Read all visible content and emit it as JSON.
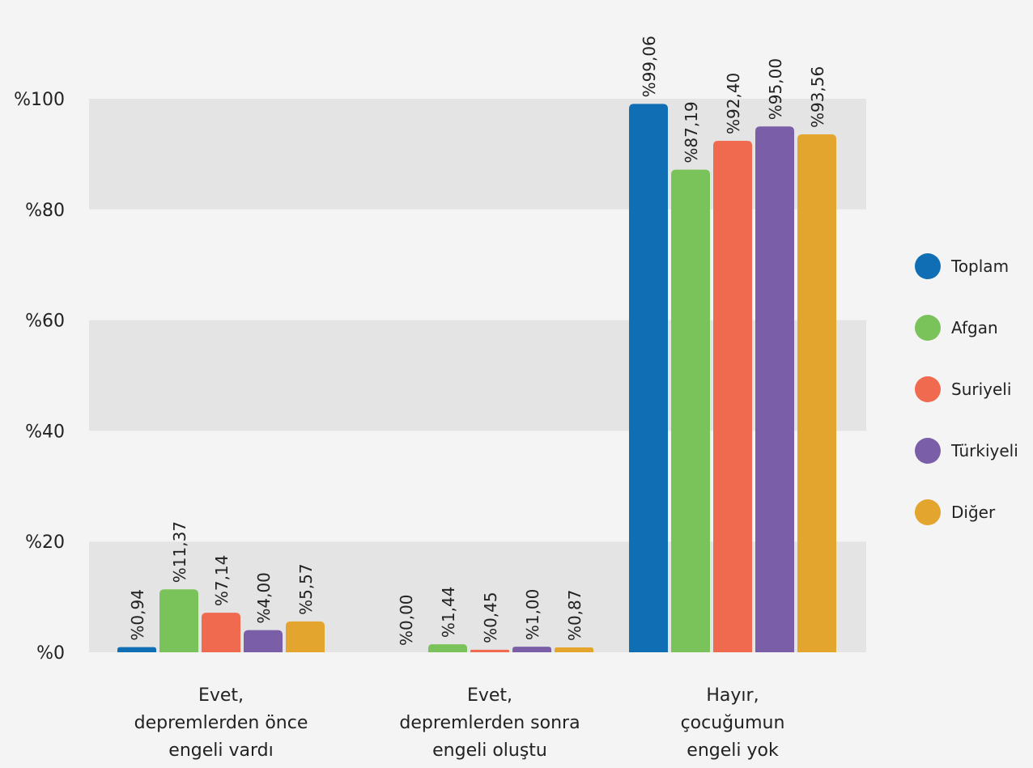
{
  "chart_data": {
    "type": "bar",
    "categories": [
      [
        "Evet,",
        "depremlerden önce",
        "engeli vardı"
      ],
      [
        "Evet,",
        "depremlerden sonra",
        "engeli oluştu"
      ],
      [
        "Hayır,",
        "çocuğumun",
        "engeli yok"
      ]
    ],
    "series": [
      {
        "name": "Toplam",
        "color": "#0f6eb4",
        "values": [
          0.94,
          0.0,
          99.06
        ],
        "labels": [
          "%0,94",
          "%0,00",
          "%99,06"
        ]
      },
      {
        "name": "Afgan",
        "color": "#7ac35a",
        "values": [
          11.37,
          1.44,
          87.19
        ],
        "labels": [
          "%11,37",
          "%1,44",
          "%87,19"
        ]
      },
      {
        "name": "Suriyeli",
        "color": "#f06a4f",
        "values": [
          7.14,
          0.45,
          92.4
        ],
        "labels": [
          "%7,14",
          "%0,45",
          "%92,40"
        ]
      },
      {
        "name": "Türkiyeli",
        "color": "#7a5fa8",
        "values": [
          4.0,
          1.0,
          95.0
        ],
        "labels": [
          "%4,00",
          "%1,00",
          "%95,00"
        ]
      },
      {
        "name": "Diğer",
        "color": "#e3a52d",
        "values": [
          5.57,
          0.87,
          93.56
        ],
        "labels": [
          "%5,57",
          "%0,87",
          "%93,56"
        ]
      }
    ],
    "y_ticks": [
      {
        "value": 0,
        "label": "%0"
      },
      {
        "value": 20,
        "label": "%20"
      },
      {
        "value": 40,
        "label": "%40"
      },
      {
        "value": 60,
        "label": "%60"
      },
      {
        "value": 80,
        "label": "%80"
      },
      {
        "value": 100,
        "label": "%100"
      }
    ],
    "ylim": [
      0,
      100
    ],
    "legend_position": "right",
    "grid": "alternating bands"
  }
}
